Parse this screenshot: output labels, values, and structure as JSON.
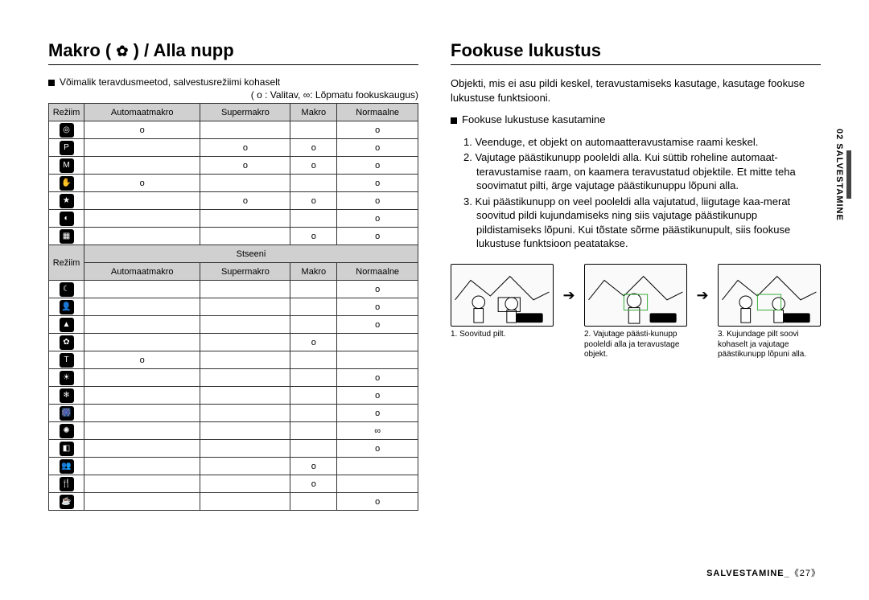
{
  "left": {
    "heading_prefix": "Makro (",
    "heading_icon": "✿",
    "heading_suffix": ") / Alla nupp",
    "note": "Võimalik teravdusmeetod, salvestusrežiimi kohaselt",
    "legend": "( o : Valitav, ∞: Lõpmatu fookuskaugus)",
    "table1": {
      "headers": [
        "Režiim",
        "Automaatmakro",
        "Supermakro",
        "Makro",
        "Normaalne"
      ],
      "rows": [
        {
          "icon": "◎",
          "cells": [
            "o",
            "",
            "",
            "o"
          ]
        },
        {
          "icon": "P",
          "cells": [
            "",
            "o",
            "o",
            "o"
          ]
        },
        {
          "icon": "M",
          "cells": [
            "",
            "o",
            "o",
            "o"
          ]
        },
        {
          "icon": "✋",
          "cells": [
            "o",
            "",
            "",
            "o"
          ]
        },
        {
          "icon": "★",
          "cells": [
            "",
            "o",
            "o",
            "o"
          ]
        },
        {
          "icon": "◐",
          "cells": [
            "",
            "",
            "",
            "o"
          ]
        },
        {
          "icon": "▦",
          "cells": [
            "",
            "",
            "o",
            "o"
          ]
        }
      ]
    },
    "table2": {
      "scene_header": "Stseeni",
      "headers": [
        "Režiim",
        "Automaatmakro",
        "Supermakro",
        "Makro",
        "Normaalne"
      ],
      "rows": [
        {
          "icon": "☾",
          "cells": [
            "",
            "",
            "",
            "o"
          ]
        },
        {
          "icon": "👤",
          "cells": [
            "",
            "",
            "",
            "o"
          ]
        },
        {
          "icon": "▲",
          "cells": [
            "",
            "",
            "",
            "o"
          ]
        },
        {
          "icon": "✿",
          "cells": [
            "",
            "",
            "o",
            ""
          ]
        },
        {
          "icon": "T",
          "cells": [
            "o",
            "",
            "",
            ""
          ]
        },
        {
          "icon": "☀",
          "cells": [
            "",
            "",
            "",
            "o"
          ]
        },
        {
          "icon": "❄",
          "cells": [
            "",
            "",
            "",
            "o"
          ]
        },
        {
          "icon": "🎆",
          "cells": [
            "",
            "",
            "",
            "o"
          ]
        },
        {
          "icon": "✺",
          "cells": [
            "",
            "",
            "",
            "∞"
          ]
        },
        {
          "icon": "◧",
          "cells": [
            "",
            "",
            "",
            "o"
          ]
        },
        {
          "icon": "👥",
          "cells": [
            "",
            "",
            "o",
            ""
          ]
        },
        {
          "icon": "🍴",
          "cells": [
            "",
            "",
            "o",
            ""
          ]
        },
        {
          "icon": "☕",
          "cells": [
            "",
            "",
            "",
            "o"
          ]
        }
      ]
    }
  },
  "right": {
    "heading": "Fookuse lukustus",
    "intro": "Objekti, mis ei asu pildi keskel, teravustamiseks kasutage, kasutage fookuse lukustuse funktsiooni.",
    "sub": "Fookuse lukustuse kasutamine",
    "steps": [
      "1. Veenduge, et objekt on automaatteravustamise raami keskel.",
      "2. Vajutage päästikunupp pooleldi alla. Kui süttib roheline automaat-teravustamise raam, on kaamera teravustatud objektile. Et mitte teha soovimatut pilti, ärge vajutage päästikunuppu lõpuni alla.",
      "3. Kui päästikunupp on veel pooleldi alla vajutatud, liigutage kaa-merat soovitud pildi kujundamiseks ning siis vajutage päästikunupp pildistamiseks lõpuni. Kui tõstate sõrme päästikunupult, siis fookuse lukustuse funktsioon peatatakse."
    ],
    "captions": [
      "1. Soovitud pilt.",
      "2. Vajutage päästi-kunupp pooleldi alla ja teravustage objekt.",
      "3. Kujundage pilt soovi kohaselt ja vajutage päästikunupp lõpuni alla."
    ]
  },
  "side_tab": "02 SALVESTAMINE",
  "footer": "SALVESTAMINE_",
  "page_marker": "《27》"
}
